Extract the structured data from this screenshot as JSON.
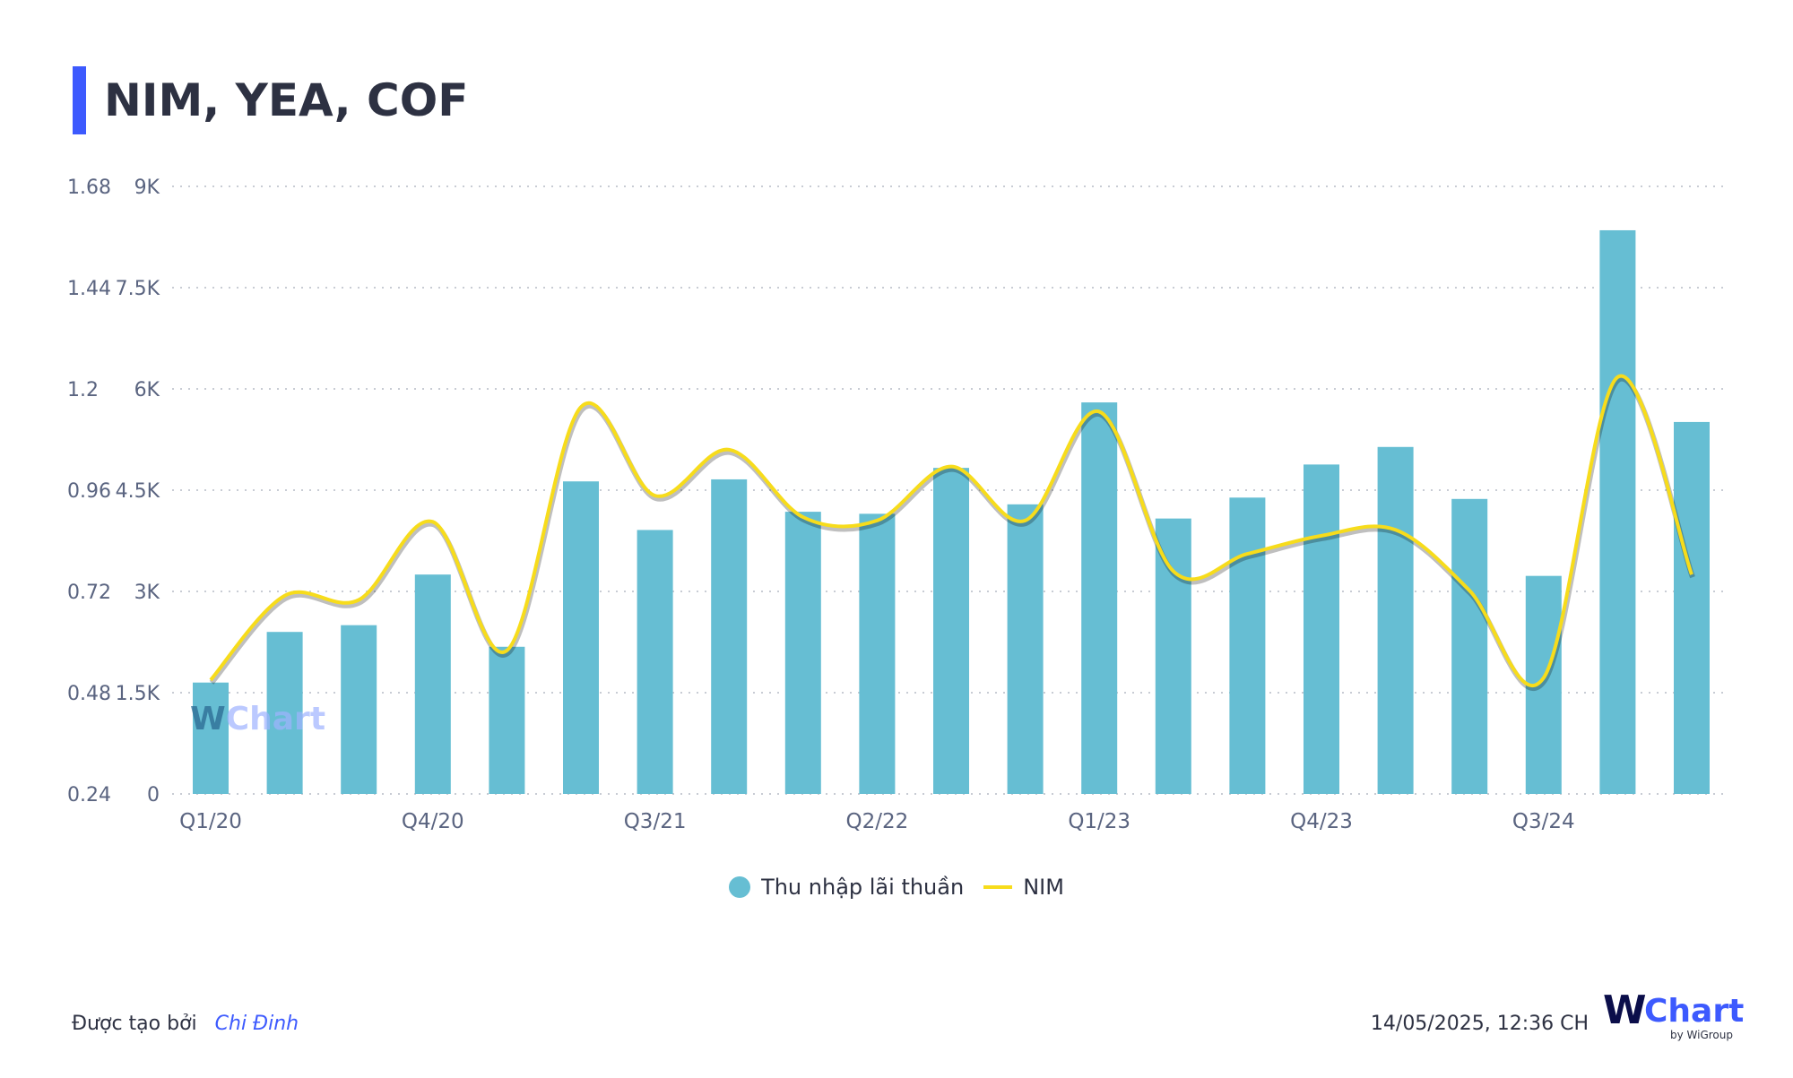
{
  "header": {
    "title": "NIM, YEA, COF"
  },
  "chart_data": {
    "type": "bar+line",
    "title": "NIM, YEA, COF",
    "categories": [
      "Q1/20",
      "Q2/20",
      "Q3/20",
      "Q4/20",
      "Q1/21",
      "Q2/21",
      "Q3/21",
      "Q4/21",
      "Q1/22",
      "Q2/22",
      "Q3/22",
      "Q4/22",
      "Q1/23",
      "Q2/23",
      "Q3/23",
      "Q4/23",
      "Q1/24",
      "Q2/24",
      "Q3/24",
      "Q4/24",
      "Q1/25"
    ],
    "x_tick_labels": [
      "Q1/20",
      "Q4/20",
      "Q3/21",
      "Q2/22",
      "Q1/23",
      "Q4/23",
      "Q3/24"
    ],
    "series": [
      {
        "name": "Thu nhập lãi thuần",
        "type": "bar",
        "axis": "right",
        "color": "#66bed3",
        "values": [
          1650,
          2400,
          2500,
          3250,
          2180,
          4630,
          3910,
          4660,
          4180,
          4150,
          4830,
          4290,
          5800,
          4080,
          4390,
          4880,
          5140,
          4370,
          3230,
          8350,
          5510
        ]
      },
      {
        "name": "NIM",
        "type": "line",
        "axis": "left",
        "color": "#f7dc1b",
        "values": [
          0.51,
          0.71,
          0.7,
          0.885,
          0.58,
          1.157,
          0.947,
          1.056,
          0.896,
          0.888,
          1.016,
          0.888,
          1.146,
          0.768,
          0.809,
          0.852,
          0.866,
          0.722,
          0.515,
          1.228,
          0.76
        ]
      }
    ],
    "left_axis": {
      "ticks": [
        "0.24",
        "0.48",
        "0.72",
        "0.96",
        "1.2",
        "1.44",
        "1.68"
      ],
      "range": [
        0.24,
        1.68
      ]
    },
    "right_axis": {
      "ticks": [
        "0",
        "1.5K",
        "3K",
        "4.5K",
        "6K",
        "7.5K",
        "9K"
      ],
      "range": [
        0,
        9000
      ]
    },
    "grid": true,
    "legend_position": "bottom-center"
  },
  "legend": {
    "bar": "Thu nhập lãi thuần",
    "line": "NIM"
  },
  "watermark": {
    "w": "W",
    "chart": "Chart"
  },
  "footer": {
    "created_by": "Được tạo bởi",
    "author": "Chi Đinh",
    "timestamp": "14/05/2025, 12:36 CH",
    "logo_w": "W",
    "logo_chart": "Chart",
    "logo_by": "by WiGroup"
  }
}
